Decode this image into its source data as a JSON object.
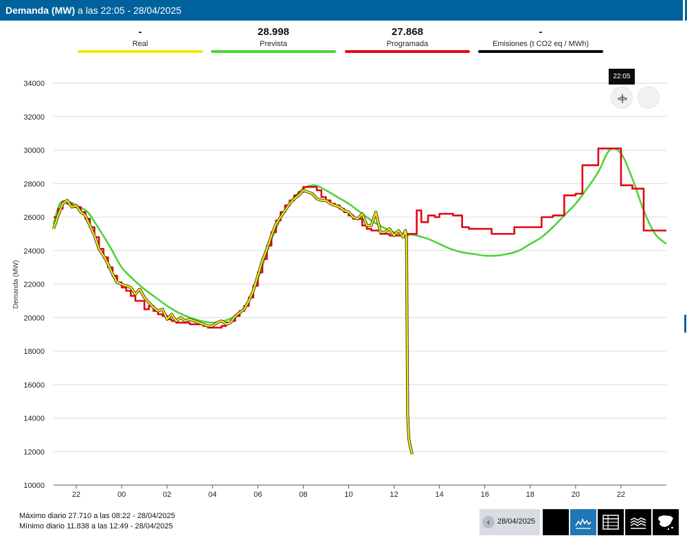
{
  "header": {
    "title_bold": "Demanda (MW)",
    "title_rest": " a las 22:05 - 28/04/2025"
  },
  "legend": [
    {
      "value": "-",
      "label": "Real",
      "color": "#f2e600"
    },
    {
      "value": "28.998",
      "label": "Prevista",
      "color": "#4ed23a"
    },
    {
      "value": "27.868",
      "label": "Programada",
      "color": "#e20613"
    },
    {
      "value": "-",
      "label": "Emisiones (t CO2 eq / MWh)",
      "color": "#000000"
    }
  ],
  "tooltip": "22:05",
  "stats": {
    "max": "Máximo diario 27.710 a las 08:22 - 28/04/2025",
    "min": "Mínimo diario 11.838 a las 12:49 - 28/04/2025"
  },
  "controls": {
    "date": "28/04/2025",
    "prev_icon": "chevron-left-icon"
  },
  "chart_data": {
    "type": "line",
    "ylabel": "Demanda (MW)",
    "ylim": [
      10000,
      34000
    ],
    "y_ticks": [
      10000,
      12000,
      14000,
      16000,
      18000,
      20000,
      22000,
      24000,
      26000,
      28000,
      30000,
      32000,
      34000
    ],
    "x_unit": "hours since 00:00 28/04/2025",
    "xlim": [
      -3,
      24
    ],
    "x_ticks": [
      {
        "h": -2,
        "label": "22"
      },
      {
        "h": 0,
        "label": "00"
      },
      {
        "h": 2,
        "label": "02"
      },
      {
        "h": 4,
        "label": "04"
      },
      {
        "h": 6,
        "label": "06"
      },
      {
        "h": 8,
        "label": "08"
      },
      {
        "h": 10,
        "label": "10"
      },
      {
        "h": 12,
        "label": "12"
      },
      {
        "h": 14,
        "label": "14"
      },
      {
        "h": 16,
        "label": "16"
      },
      {
        "h": 18,
        "label": "18"
      },
      {
        "h": 20,
        "label": "20"
      },
      {
        "h": 22,
        "label": "22"
      }
    ],
    "grid": true,
    "series": [
      {
        "name": "Prevista",
        "color": "#4ed23a",
        "style": "smooth",
        "x": [
          -3,
          -2.7,
          -2.3,
          -2,
          -1.5,
          -1,
          -0.5,
          0,
          0.5,
          1,
          1.5,
          2,
          2.5,
          3,
          3.5,
          4,
          4.5,
          5,
          5.5,
          6,
          6.5,
          7,
          7.5,
          8,
          8.5,
          9,
          9.5,
          10,
          10.5,
          11,
          11.5,
          12,
          12.5,
          13,
          13.5,
          14,
          14.5,
          15,
          15.5,
          16,
          16.5,
          17,
          17.5,
          18,
          18.5,
          19,
          19.5,
          20,
          20.5,
          21,
          21.5,
          22,
          22.5,
          23,
          23.5,
          24
        ],
        "values": [
          25600,
          26850,
          26900,
          26700,
          26300,
          25300,
          24200,
          23000,
          22300,
          21700,
          21200,
          20700,
          20300,
          20000,
          19800,
          19700,
          19800,
          20100,
          20800,
          22300,
          24300,
          25900,
          27000,
          27700,
          27900,
          27600,
          27200,
          26800,
          26300,
          25800,
          25400,
          25100,
          25000,
          24900,
          24700,
          24400,
          24100,
          23900,
          23800,
          23700,
          23700,
          23800,
          24000,
          24400,
          24800,
          25400,
          26100,
          26800,
          27700,
          28700,
          30000,
          29800,
          28300,
          26400,
          25000,
          24400
        ]
      },
      {
        "name": "Programada",
        "color": "#e20613",
        "style": "step",
        "x": [
          -3,
          -2.8,
          -2.6,
          -2.4,
          -2.2,
          -2,
          -1.8,
          -1.6,
          -1.4,
          -1.2,
          -1,
          -0.8,
          -0.6,
          -0.4,
          -0.2,
          0,
          0.2,
          0.4,
          0.6,
          0.8,
          1,
          1.2,
          1.4,
          1.6,
          1.8,
          2,
          2.2,
          2.4,
          2.6,
          2.8,
          3,
          3.2,
          3.4,
          3.6,
          3.8,
          4,
          4.2,
          4.4,
          4.6,
          4.8,
          5,
          5.2,
          5.4,
          5.6,
          5.8,
          6,
          6.2,
          6.4,
          6.6,
          6.8,
          7,
          7.2,
          7.4,
          7.6,
          7.8,
          8,
          8.2,
          8.4,
          8.6,
          8.8,
          9,
          9.2,
          9.4,
          9.6,
          9.8,
          10,
          10.2,
          10.4,
          10.6,
          10.8,
          11,
          11.2,
          11.4,
          11.6,
          11.8,
          12,
          12.2,
          12.4,
          12.6,
          12.8,
          13,
          13.2,
          13.5,
          13.8,
          14,
          14.3,
          14.6,
          15,
          15.3,
          15.6,
          16,
          16.3,
          16.6,
          17,
          17.3,
          17.6,
          18,
          18.5,
          19,
          19.5,
          20,
          20.3,
          21,
          21.5,
          22,
          22.5,
          23,
          24
        ],
        "values": [
          26000,
          26500,
          26900,
          26800,
          26600,
          26600,
          26300,
          25900,
          25400,
          24800,
          24100,
          23600,
          23000,
          22500,
          22100,
          21800,
          21600,
          21300,
          21000,
          21000,
          20500,
          20700,
          20400,
          20200,
          20100,
          19900,
          19800,
          19700,
          19700,
          19700,
          19600,
          19600,
          19600,
          19500,
          19400,
          19400,
          19400,
          19500,
          19700,
          19800,
          20100,
          20400,
          20700,
          21200,
          21900,
          22700,
          23500,
          24300,
          25100,
          25800,
          26300,
          26700,
          27000,
          27300,
          27500,
          27800,
          27800,
          27800,
          27600,
          27200,
          27000,
          26800,
          26700,
          26500,
          26300,
          26100,
          25900,
          25900,
          25500,
          25300,
          25200,
          25200,
          25000,
          25000,
          24900,
          24900,
          24900,
          24900,
          25000,
          25000,
          26400,
          25700,
          26100,
          26000,
          26200,
          26200,
          26100,
          25400,
          25300,
          25300,
          25300,
          25000,
          25000,
          25000,
          25400,
          25400,
          25400,
          26000,
          26100,
          27300,
          27400,
          29100,
          30100,
          30100,
          27900,
          27700,
          25200,
          25200
        ]
      },
      {
        "name": "Real",
        "color": "#f2e600",
        "style": "line",
        "x": [
          -3,
          -2.8,
          -2.6,
          -2.4,
          -2.2,
          -2,
          -1.8,
          -1.6,
          -1.4,
          -1.2,
          -1,
          -0.8,
          -0.6,
          -0.4,
          -0.2,
          0,
          0.2,
          0.4,
          0.6,
          0.8,
          1,
          1.2,
          1.4,
          1.6,
          1.8,
          2,
          2.2,
          2.4,
          2.6,
          2.8,
          3,
          3.2,
          3.4,
          3.6,
          3.8,
          4,
          4.2,
          4.4,
          4.6,
          4.8,
          5,
          5.2,
          5.4,
          5.6,
          5.8,
          6,
          6.2,
          6.4,
          6.6,
          6.8,
          7,
          7.2,
          7.4,
          7.6,
          7.8,
          8,
          8.2,
          8.4,
          8.6,
          8.8,
          9,
          9.2,
          9.4,
          9.6,
          9.8,
          10,
          10.2,
          10.4,
          10.6,
          10.8,
          11,
          11.2,
          11.4,
          11.6,
          11.8,
          12,
          12.2,
          12.4,
          12.5,
          12.55,
          12.6,
          12.65,
          12.7,
          12.8
        ],
        "values": [
          25300,
          26100,
          26800,
          27000,
          26600,
          26700,
          26300,
          26100,
          25500,
          24900,
          24100,
          23700,
          23200,
          22600,
          22100,
          22000,
          21900,
          21800,
          21400,
          21700,
          21200,
          20900,
          20600,
          20400,
          20500,
          19900,
          20200,
          19800,
          20000,
          19800,
          19900,
          19800,
          19700,
          19600,
          19500,
          19500,
          19700,
          19800,
          19600,
          19700,
          20100,
          20300,
          20500,
          21000,
          21600,
          22500,
          23400,
          24100,
          24900,
          25600,
          26000,
          26400,
          26800,
          27100,
          27300,
          27600,
          27500,
          27400,
          27100,
          27000,
          27000,
          26800,
          26700,
          26600,
          26400,
          26300,
          26000,
          25900,
          26200,
          25500,
          25500,
          26300,
          25100,
          25100,
          25300,
          24900,
          25200,
          24800,
          25200,
          24800,
          14200,
          12800,
          12400,
          11838
        ]
      }
    ]
  }
}
